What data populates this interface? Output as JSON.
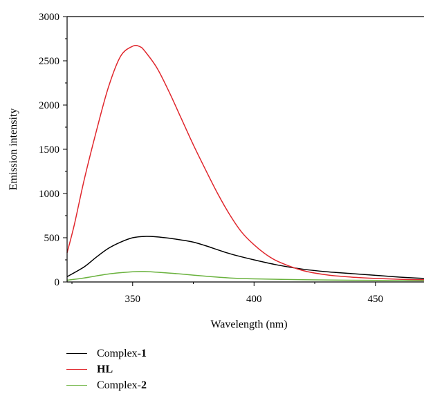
{
  "chart_data": {
    "type": "line",
    "xlabel": "Wavelength (nm)",
    "ylabel": "Emission intensity",
    "xlim": [
      323,
      470
    ],
    "ylim": [
      0,
      3000
    ],
    "xticks": [
      350,
      400,
      450
    ],
    "yticks": [
      0,
      500,
      1000,
      1500,
      2000,
      2500,
      3000
    ],
    "grid": false,
    "legend_position": "bottom-left",
    "series": [
      {
        "name": "Complex-1",
        "name_prefix": "Complex-",
        "name_bold": "1",
        "color": "#000000",
        "x": [
          323,
          330,
          335,
          340,
          345,
          350,
          355,
          360,
          365,
          370,
          375,
          380,
          390,
          400,
          410,
          420,
          430,
          440,
          450,
          460,
          470
        ],
        "y": [
          60,
          170,
          280,
          380,
          450,
          500,
          515,
          510,
          495,
          475,
          450,
          410,
          320,
          250,
          190,
          145,
          115,
          95,
          75,
          55,
          40
        ]
      },
      {
        "name": "HL",
        "name_prefix": "",
        "name_bold": "HL",
        "color": "#e0272d",
        "x": [
          323,
          326,
          330,
          335,
          340,
          345,
          350,
          353,
          355,
          360,
          365,
          370,
          375,
          380,
          385,
          390,
          395,
          400,
          405,
          410,
          420,
          430,
          440,
          450,
          460,
          470
        ],
        "y": [
          330,
          650,
          1150,
          1700,
          2200,
          2550,
          2665,
          2660,
          2610,
          2420,
          2150,
          1850,
          1550,
          1270,
          1000,
          760,
          560,
          420,
          310,
          230,
          130,
          80,
          55,
          40,
          30,
          25
        ]
      },
      {
        "name": "Complex-2",
        "name_prefix": "Complex-",
        "name_bold": "2",
        "color": "#6ab23e",
        "x": [
          323,
          330,
          340,
          350,
          355,
          360,
          370,
          380,
          390,
          400,
          420,
          440,
          460,
          470
        ],
        "y": [
          20,
          45,
          90,
          115,
          118,
          110,
          90,
          65,
          45,
          35,
          25,
          20,
          15,
          15
        ]
      }
    ]
  }
}
